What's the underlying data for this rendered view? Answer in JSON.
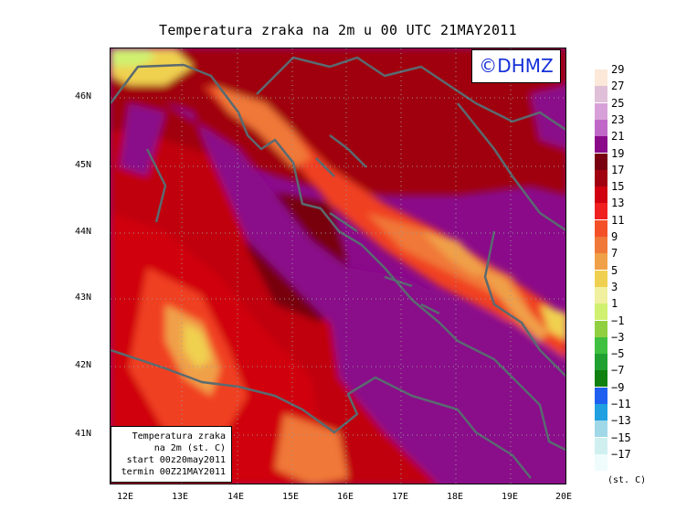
{
  "title": "Temperatura zraka na 2m u 00 UTC 21MAY2011",
  "logo": "©DHMZ",
  "y_labels": [
    "46N",
    "45N",
    "44N",
    "43N",
    "42N",
    "41N"
  ],
  "x_labels": [
    "12E",
    "13E",
    "14E",
    "15E",
    "16E",
    "17E",
    "18E",
    "19E",
    "20E"
  ],
  "info": {
    "line1": "Temperatura zraka",
    "line2": "na 2m (st. C)",
    "line3": "start 00z20may2011",
    "line4": "termin 00Z21MAY2011"
  },
  "legend": {
    "unit": "(st. C)",
    "labels": [
      "29",
      "27",
      "25",
      "23",
      "21",
      "19",
      "17",
      "15",
      "13",
      "11",
      "9",
      "7",
      "5",
      "3",
      "1",
      "−1",
      "−3",
      "−5",
      "−7",
      "−9",
      "−11",
      "−13",
      "−15",
      "−17"
    ],
    "colors": [
      "#fbe8d8",
      "#e0c0d8",
      "#d8a0d8",
      "#c068c8",
      "#8a0a8a",
      "#780010",
      "#a00010",
      "#d00010",
      "#f02020",
      "#f45028",
      "#f07838",
      "#f0a048",
      "#f0d050",
      "#f0f0a0",
      "#d0f070",
      "#90d040",
      "#40c040",
      "#20a030",
      "#108010",
      "#2060f0",
      "#20a0e0",
      "#a0d8e8",
      "#d0f0f0",
      "#f0fcfc"
    ]
  }
}
